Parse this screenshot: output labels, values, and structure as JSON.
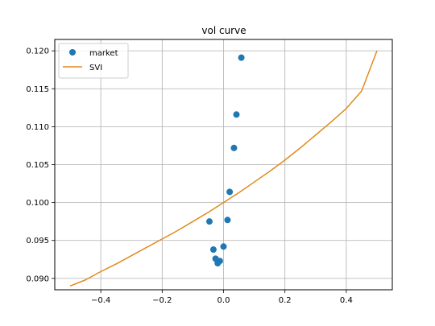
{
  "chart_data": {
    "type": "scatter",
    "title": "vol curve",
    "xlabel": "",
    "ylabel": "",
    "xlim": [
      -0.55,
      0.55
    ],
    "ylim": [
      0.0885,
      0.1215
    ],
    "xticks": [
      -0.4,
      -0.2,
      0.0,
      0.2,
      0.4
    ],
    "xtick_labels": [
      "−0.4",
      "−0.2",
      "0.0",
      "0.2",
      "0.4"
    ],
    "yticks": [
      0.09,
      0.095,
      0.1,
      0.105,
      0.11,
      0.115,
      0.12
    ],
    "ytick_labels": [
      "0.090",
      "0.095",
      "0.100",
      "0.105",
      "0.110",
      "0.115",
      "0.120"
    ],
    "grid": true,
    "legend_position": "top-left",
    "series": [
      {
        "name": "market",
        "kind": "scatter",
        "color": "#1f77b4",
        "points": [
          {
            "x": -0.046,
            "y": 0.0975
          },
          {
            "x": -0.033,
            "y": 0.0938
          },
          {
            "x": -0.026,
            "y": 0.0926
          },
          {
            "x": -0.019,
            "y": 0.092
          },
          {
            "x": -0.012,
            "y": 0.0923
          },
          {
            "x": 0.0,
            "y": 0.0942
          },
          {
            "x": 0.013,
            "y": 0.0977
          },
          {
            "x": 0.02,
            "y": 0.1014
          },
          {
            "x": 0.034,
            "y": 0.1072
          },
          {
            "x": 0.042,
            "y": 0.1116
          },
          {
            "x": 0.058,
            "y": 0.1191
          }
        ]
      },
      {
        "name": "SVI",
        "kind": "line",
        "color": "#e08a1e",
        "points": [
          {
            "x": -0.5,
            "y": 0.089
          },
          {
            "x": -0.45,
            "y": 0.0898
          },
          {
            "x": -0.4,
            "y": 0.0909
          },
          {
            "x": -0.35,
            "y": 0.0919
          },
          {
            "x": -0.3,
            "y": 0.093
          },
          {
            "x": -0.25,
            "y": 0.0941
          },
          {
            "x": -0.2,
            "y": 0.0952
          },
          {
            "x": -0.15,
            "y": 0.0963
          },
          {
            "x": -0.1,
            "y": 0.0975
          },
          {
            "x": -0.05,
            "y": 0.0987
          },
          {
            "x": 0.0,
            "y": 0.1
          },
          {
            "x": 0.05,
            "y": 0.1013
          },
          {
            "x": 0.1,
            "y": 0.1027
          },
          {
            "x": 0.15,
            "y": 0.1041
          },
          {
            "x": 0.2,
            "y": 0.1056
          },
          {
            "x": 0.25,
            "y": 0.1072
          },
          {
            "x": 0.3,
            "y": 0.1089
          },
          {
            "x": 0.35,
            "y": 0.1106
          },
          {
            "x": 0.4,
            "y": 0.1124
          },
          {
            "x": 0.45,
            "y": 0.1147
          },
          {
            "x": 0.5,
            "y": 0.12
          }
        ]
      }
    ]
  }
}
